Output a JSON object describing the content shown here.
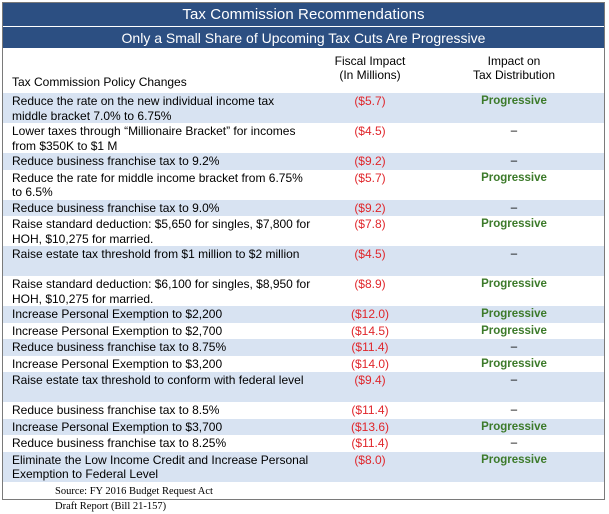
{
  "title": "Tax Commission Recommendations",
  "subtitle": "Only a Small Share of Upcoming Tax Cuts Are Progressive",
  "columns": {
    "policy": "Tax Commission Policy Changes",
    "fiscal_line1": "Fiscal Impact",
    "fiscal_line2": "(In Millions)",
    "impact_line1": "Impact on",
    "impact_line2": "Tax Distribution"
  },
  "rows": [
    {
      "policy": "Reduce the rate on the new individual income tax middle bracket 7.0% to 6.75%",
      "fiscal": "($5.7)",
      "impact": "Progressive",
      "lines": 2,
      "shade": true
    },
    {
      "policy": "Lower taxes through “Millionaire Bracket” for incomes from $350K to $1 M",
      "fiscal": "($4.5)",
      "impact": "–",
      "lines": 2,
      "shade": false
    },
    {
      "policy": "Reduce business franchise tax to 9.2%",
      "fiscal": "($9.2)",
      "impact": "–",
      "lines": 1,
      "shade": true
    },
    {
      "policy": "Reduce the rate for middle income bracket from 6.75% to 6.5%",
      "fiscal": "($5.7)",
      "impact": "Progressive",
      "lines": 2,
      "shade": false
    },
    {
      "policy": "Reduce business franchise tax to 9.0%",
      "fiscal": "($9.2)",
      "impact": "–",
      "lines": 1,
      "shade": true
    },
    {
      "policy": "Raise standard deduction: $5,650 for singles, $7,800 for HOH, $10,275 for married.",
      "fiscal": "($7.8)",
      "impact": "Progressive",
      "lines": 2,
      "shade": false
    },
    {
      "policy": "Raise estate tax threshold from $1 million to $2 million",
      "fiscal": "($4.5)",
      "impact": "–",
      "lines": 2,
      "shade": true
    },
    {
      "policy": "Raise standard deduction: $6,100 for singles, $8,950 for HOH, $10,275 for married.",
      "fiscal": "($8.9)",
      "impact": "Progressive",
      "lines": 2,
      "shade": false
    },
    {
      "policy": "Increase Personal Exemption to $2,200",
      "fiscal": "($12.0)",
      "impact": "Progressive",
      "lines": 1,
      "shade": true
    },
    {
      "policy": "Increase Personal Exemption to $2,700",
      "fiscal": "($14.5)",
      "impact": "Progressive",
      "lines": 1,
      "shade": false
    },
    {
      "policy": "Reduce business franchise tax to 8.75%",
      "fiscal": "($11.4)",
      "impact": "–",
      "lines": 1,
      "shade": true
    },
    {
      "policy": "Increase Personal Exemption to $3,200",
      "fiscal": "($14.0)",
      "impact": "Progressive",
      "lines": 1,
      "shade": false
    },
    {
      "policy": "Raise estate tax threshold to conform with federal level",
      "fiscal": "($9.4)",
      "impact": "–",
      "lines": 2,
      "shade": true
    },
    {
      "policy": "Reduce business franchise tax to 8.5%",
      "fiscal": "($11.4)",
      "impact": "–",
      "lines": 1,
      "shade": false
    },
    {
      "policy": "Increase Personal Exemption to $3,700",
      "fiscal": "($13.6)",
      "impact": "Progressive",
      "lines": 1,
      "shade": true
    },
    {
      "policy": "Reduce business franchise tax to 8.25%",
      "fiscal": "($11.4)",
      "impact": "–",
      "lines": 1,
      "shade": false
    },
    {
      "policy": "Eliminate the Low Income Credit and Increase Personal Exemption to Federal Level",
      "fiscal": "($8.0)",
      "impact": "Progressive",
      "lines": 2,
      "shade": true
    }
  ],
  "source_line1": "Source: FY 2016 Budget Request Act",
  "source_line2": "Draft Report (Bill 21-157)"
}
